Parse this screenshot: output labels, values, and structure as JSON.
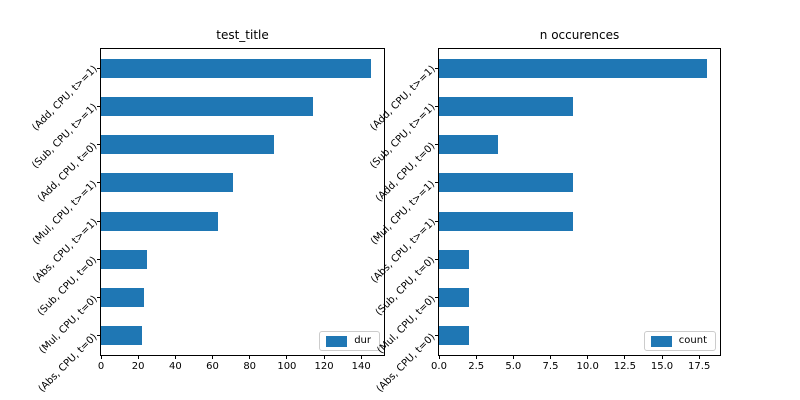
{
  "figure": {
    "background": "#ffffff",
    "text_color": "#000000"
  },
  "chart_data": [
    {
      "type": "bar",
      "orientation": "horizontal",
      "title": "test_title",
      "legend": {
        "label": "dur",
        "position": "lower right",
        "swatch_color": "#1f77b4"
      },
      "bar_color": "#1f77b4",
      "grid": false,
      "categories": [
        "(Add, CPU, t>=1)",
        "(Sub, CPU, t>=1)",
        "(Add, CPU, t=0)",
        "(Mul, CPU, t>=1)",
        "(Abs, CPU, t>=1)",
        "(Sub, CPU, t=0)",
        "(Mul, CPU, t=0)",
        "(Abs, CPU, t=0)"
      ],
      "values": [
        145,
        114,
        93,
        71,
        63,
        25,
        23,
        22
      ],
      "xlim": [
        0,
        152.25
      ],
      "xticks": [
        0,
        20,
        40,
        60,
        80,
        100,
        120,
        140
      ],
      "xtick_labels": [
        "0",
        "20",
        "40",
        "60",
        "80",
        "100",
        "120",
        "140"
      ],
      "xlabel": "",
      "ylabel": ""
    },
    {
      "type": "bar",
      "orientation": "horizontal",
      "title": "n occurences",
      "legend": {
        "label": "count",
        "position": "lower right",
        "swatch_color": "#1f77b4"
      },
      "bar_color": "#1f77b4",
      "grid": false,
      "categories": [
        "(Add, CPU, t>=1)",
        "(Sub, CPU, t>=1)",
        "(Add, CPU, t=0)",
        "(Mul, CPU, t>=1)",
        "(Abs, CPU, t>=1)",
        "(Sub, CPU, t=0)",
        "(Mul, CPU, t=0)",
        "(Abs, CPU, t=0)"
      ],
      "values": [
        18,
        9,
        4,
        9,
        9,
        2,
        2,
        2
      ],
      "xlim": [
        0,
        18.9
      ],
      "xticks": [
        0,
        2.5,
        5,
        7.5,
        10,
        12.5,
        15,
        17.5
      ],
      "xtick_labels": [
        "0.0",
        "2.5",
        "5.0",
        "7.5",
        "10.0",
        "12.5",
        "15.0",
        "17.5"
      ],
      "xlabel": "",
      "ylabel": ""
    }
  ]
}
